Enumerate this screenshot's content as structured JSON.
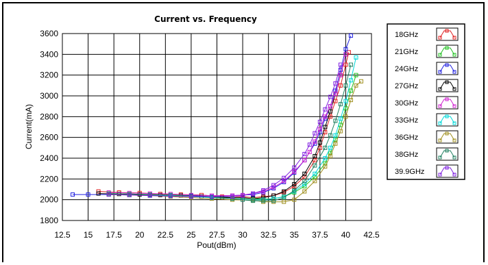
{
  "chart_data": {
    "type": "line",
    "title": "Current vs. Frequency",
    "xlabel": "Pout(dBm)",
    "ylabel": "Current(mA)",
    "xlim": [
      12.5,
      42.5
    ],
    "ylim": [
      1800,
      3600
    ],
    "xticks": [
      "12.5",
      "15",
      "17.5",
      "20",
      "22.5",
      "25",
      "27.5",
      "30",
      "32.5",
      "35",
      "37.5",
      "40",
      "42.5"
    ],
    "yticks": [
      "1800",
      "2000",
      "2200",
      "2400",
      "2600",
      "2800",
      "3000",
      "3200",
      "3400",
      "3600"
    ],
    "grid": true,
    "legend_position": "right",
    "marker": "square",
    "series": [
      {
        "name": "18GHz",
        "color": "#e02020",
        "x": [
          16.0,
          18,
          20,
          22,
          24,
          26,
          28,
          30,
          31,
          32,
          33,
          34,
          35,
          36,
          37,
          37.5,
          38,
          38.5,
          39,
          39.5,
          40,
          40.3
        ],
        "y": [
          2080,
          2070,
          2065,
          2055,
          2050,
          2045,
          2030,
          2030,
          2020,
          2030,
          2040,
          2070,
          2130,
          2220,
          2380,
          2500,
          2650,
          2800,
          2950,
          3100,
          3300,
          3420
        ]
      },
      {
        "name": "21GHz",
        "color": "#20c020",
        "x": [
          17,
          19,
          21,
          23,
          25,
          27,
          29,
          31,
          32,
          33,
          34,
          35,
          36,
          37,
          38,
          38.5,
          39,
          39.5,
          40,
          40.5,
          41
        ],
        "y": [
          2060,
          2055,
          2050,
          2045,
          2040,
          2030,
          2020,
          2010,
          2005,
          2010,
          2030,
          2070,
          2130,
          2220,
          2350,
          2450,
          2580,
          2720,
          2880,
          3050,
          3200
        ]
      },
      {
        "name": "24GHz",
        "color": "#2020e0",
        "x": [
          13.5,
          15,
          17,
          19,
          21,
          23,
          25,
          27,
          29,
          31,
          32,
          33,
          34,
          35,
          36,
          37,
          37.5,
          38,
          38.5,
          39,
          39.5,
          40,
          40.5
        ],
        "y": [
          2050,
          2050,
          2050,
          2045,
          2045,
          2040,
          2040,
          2030,
          2040,
          2050,
          2070,
          2110,
          2170,
          2260,
          2380,
          2540,
          2650,
          2780,
          2900,
          3050,
          3250,
          3450,
          3580
        ]
      },
      {
        "name": "27GHz",
        "color": "#000000",
        "x": [
          16,
          18,
          20,
          22,
          24,
          26,
          28,
          30,
          31,
          32,
          33,
          34,
          35,
          36,
          37,
          37.5,
          38,
          38.5,
          39,
          39.5,
          40
        ],
        "y": [
          2060,
          2055,
          2050,
          2045,
          2040,
          2030,
          2020,
          2020,
          2010,
          2020,
          2040,
          2080,
          2150,
          2250,
          2420,
          2550,
          2700,
          2850,
          3020,
          3200,
          3400
        ]
      },
      {
        "name": "30GHz",
        "color": "#d020d0",
        "x": [
          17,
          19,
          21,
          23,
          25,
          27,
          29,
          30,
          31,
          32,
          33,
          34,
          35,
          36,
          36.5,
          37,
          37.5,
          38,
          38.5,
          39,
          39.5,
          40
        ],
        "y": [
          2070,
          2065,
          2060,
          2055,
          2045,
          2040,
          2040,
          2045,
          2060,
          2080,
          2120,
          2180,
          2270,
          2380,
          2460,
          2560,
          2680,
          2800,
          2900,
          3020,
          3200,
          3400
        ]
      },
      {
        "name": "33GHz",
        "color": "#00d8d8",
        "x": [
          17,
          19,
          21,
          23,
          25,
          27,
          29,
          31,
          32,
          33,
          34,
          35,
          36,
          37,
          38,
          38.5,
          39,
          39.5,
          40,
          40.5,
          41
        ],
        "y": [
          2050,
          2045,
          2040,
          2040,
          2030,
          2020,
          2010,
          2000,
          2000,
          2010,
          2030,
          2080,
          2150,
          2250,
          2400,
          2500,
          2620,
          2780,
          2950,
          3150,
          3370
        ]
      },
      {
        "name": "36GHz",
        "color": "#a09020",
        "x": [
          17,
          19,
          21,
          23,
          25,
          27,
          29,
          31,
          32,
          33,
          34,
          35,
          36,
          37,
          38,
          38.5,
          39,
          39.5,
          40,
          40.5,
          41,
          41.5
        ],
        "y": [
          2050,
          2045,
          2040,
          2030,
          2020,
          2010,
          2000,
          1995,
          1980,
          1980,
          1980,
          2000,
          2080,
          2180,
          2320,
          2420,
          2540,
          2660,
          2800,
          2960,
          3100,
          3140
        ]
      },
      {
        "name": "38GHz",
        "color": "#208060",
        "x": [
          17,
          19,
          21,
          23,
          25,
          27,
          29,
          30,
          31,
          32,
          33,
          34,
          35,
          36,
          37,
          38,
          38.5,
          39,
          39.5,
          40,
          40.5
        ],
        "y": [
          2060,
          2055,
          2050,
          2045,
          2035,
          2025,
          2010,
          2000,
          1990,
          1990,
          1990,
          2020,
          2090,
          2180,
          2330,
          2500,
          2620,
          2760,
          2920,
          3100,
          3300
        ]
      },
      {
        "name": "39.9GHz",
        "color": "#8020e0",
        "x": [
          17,
          19,
          21,
          23,
          25,
          27,
          29,
          30,
          31,
          32,
          33,
          34,
          35,
          36,
          36.5,
          37,
          37.5,
          38,
          38.5,
          39,
          39.5
        ],
        "y": [
          2050,
          2045,
          2040,
          2035,
          2030,
          2030,
          2030,
          2040,
          2060,
          2090,
          2140,
          2210,
          2310,
          2440,
          2530,
          2640,
          2750,
          2870,
          2990,
          3120,
          3300
        ]
      }
    ]
  }
}
